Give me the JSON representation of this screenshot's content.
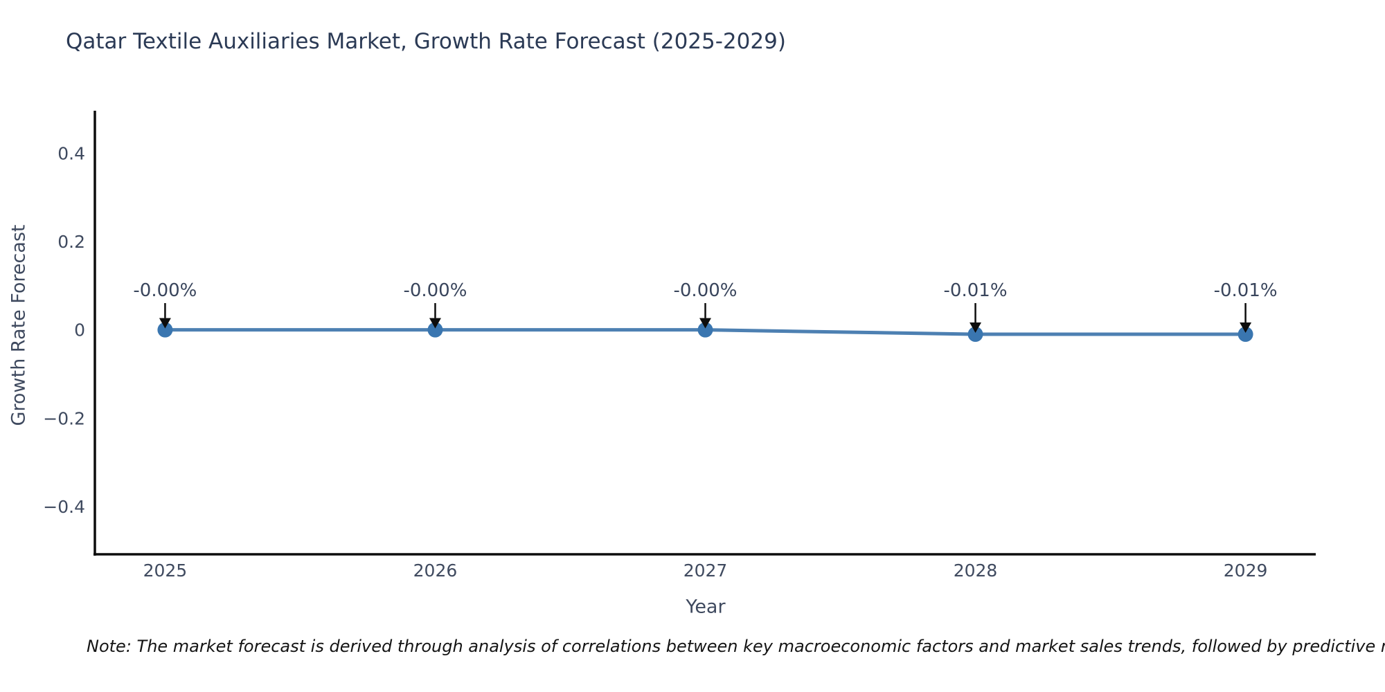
{
  "chart_data": {
    "type": "line",
    "title": "Qatar Textile Auxiliaries Market, Growth Rate Forecast (2025-2029)",
    "xlabel": "Year",
    "ylabel": "Growth Rate Forecast",
    "x": [
      2025,
      2026,
      2027,
      2028,
      2029
    ],
    "y": [
      -0.0,
      -0.0,
      -0.0,
      -0.01,
      -0.01
    ],
    "point_labels": [
      "-0.00%",
      "-0.00%",
      "-0.00%",
      "-0.01%",
      "-0.01%"
    ],
    "xticks": {
      "values": [
        2025,
        2026,
        2027,
        2028,
        2029
      ],
      "labels": [
        "2025",
        "2026",
        "2027",
        "2028",
        "2029"
      ]
    },
    "yticks": {
      "values": [
        0.4,
        0.2,
        0,
        -0.2,
        -0.4
      ],
      "labels": [
        "0.4",
        "0.2",
        "0",
        "−0.2",
        "−0.4"
      ]
    },
    "xlim": [
      2024.74,
      2029.26
    ],
    "ylim": [
      -0.508,
      0.496
    ],
    "grid": false,
    "legend": "none",
    "line_color": "#4d80b2",
    "marker_color": "#3a76b0",
    "arrow_color": "#0d0d0d",
    "axis_color": "#0d0d0d"
  },
  "note": "Note: The market forecast is derived through analysis of correlations between key macroeconomic factors and market sales trends, followed by predictive modeling to project future sales."
}
